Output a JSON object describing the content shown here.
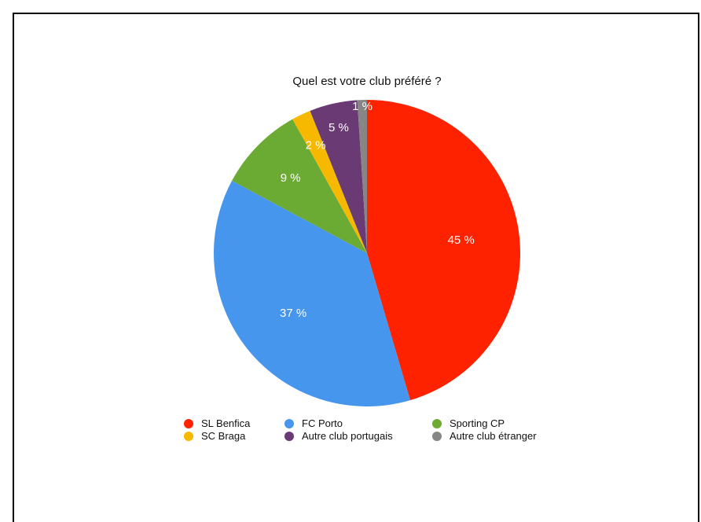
{
  "chart_data": {
    "type": "pie",
    "title": "Quel est votre club préféré ?",
    "categories": [
      "SL Benfica",
      "FC Porto",
      "Sporting CP",
      "SC Braga",
      "Autre club portugais",
      "Autre club étranger"
    ],
    "values": [
      45,
      37,
      9,
      2,
      5,
      1
    ],
    "labels": [
      "45 %",
      "37 %",
      "9 %",
      "2 %",
      "5 %",
      "1 %"
    ],
    "colors": [
      "#FF2200",
      "#4596EC",
      "#6BAA33",
      "#F7B900",
      "#6A3A75",
      "#868686"
    ],
    "legend_position": "bottom"
  }
}
